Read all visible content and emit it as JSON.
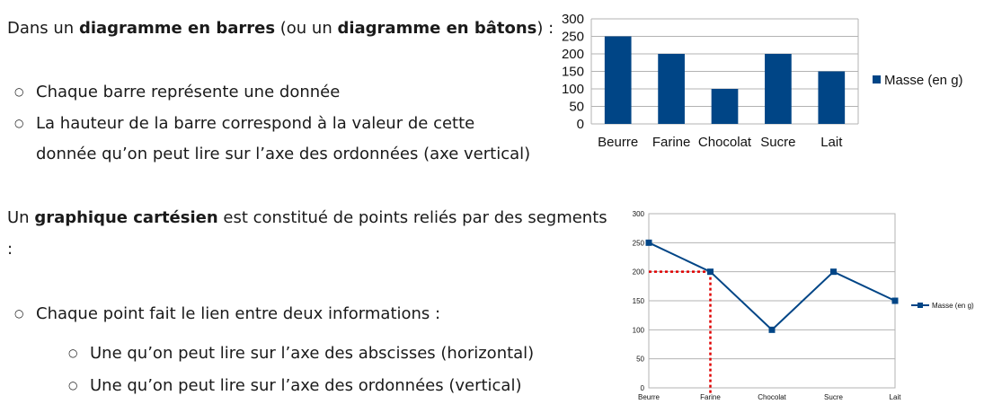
{
  "section1": {
    "intro_prefix": "Dans un ",
    "intro_bold1": "diagramme en barres",
    "intro_mid": " (ou un ",
    "intro_bold2": "diagramme en bâtons",
    "intro_suffix": ") :",
    "bullets": [
      "Chaque barre représente une donnée",
      "La hauteur de la barre correspond à la valeur de cette",
      "donnée qu’on peut lire sur l’axe des ordonnées (axe vertical)"
    ]
  },
  "section2": {
    "intro_prefix": "Un ",
    "intro_bold": "graphique cartésien",
    "intro_suffix": " est constitué de points reliés par des segments",
    "intro_colon": ":",
    "bullet_main": "Chaque point fait le lien entre deux informations :",
    "sub_bullets": [
      "Une qu’on peut lire sur l’axe des abscisses (horizontal)",
      "Une qu’on peut lire sur l’axe des ordonnées (vertical)"
    ]
  },
  "bullet_glyph": "○",
  "colors": {
    "series": "#004586",
    "grid": "#b3b3b3",
    "guide": "#e00000"
  },
  "chart_data": [
    {
      "type": "bar",
      "categories": [
        "Beurre",
        "Farine",
        "Chocolat",
        "Sucre",
        "Lait"
      ],
      "series": [
        {
          "name": "Masse (en g)",
          "values": [
            250,
            200,
            100,
            200,
            150
          ]
        }
      ],
      "yticks": [
        "0",
        "50",
        "100",
        "150",
        "200",
        "250",
        "300"
      ],
      "ylim": [
        0,
        300
      ],
      "grid": true,
      "legend": "right"
    },
    {
      "type": "line",
      "categories": [
        "Beurre",
        "Farine",
        "Chocolat",
        "Sucre",
        "Lait"
      ],
      "series": [
        {
          "name": "Masse (en g)",
          "values": [
            250,
            200,
            100,
            200,
            150
          ]
        }
      ],
      "yticks": [
        "0",
        "50",
        "100",
        "150",
        "200",
        "250",
        "300"
      ],
      "ylim": [
        0,
        300
      ],
      "grid": true,
      "legend": "right",
      "highlight": {
        "category": "Farine",
        "value": 200
      }
    }
  ]
}
